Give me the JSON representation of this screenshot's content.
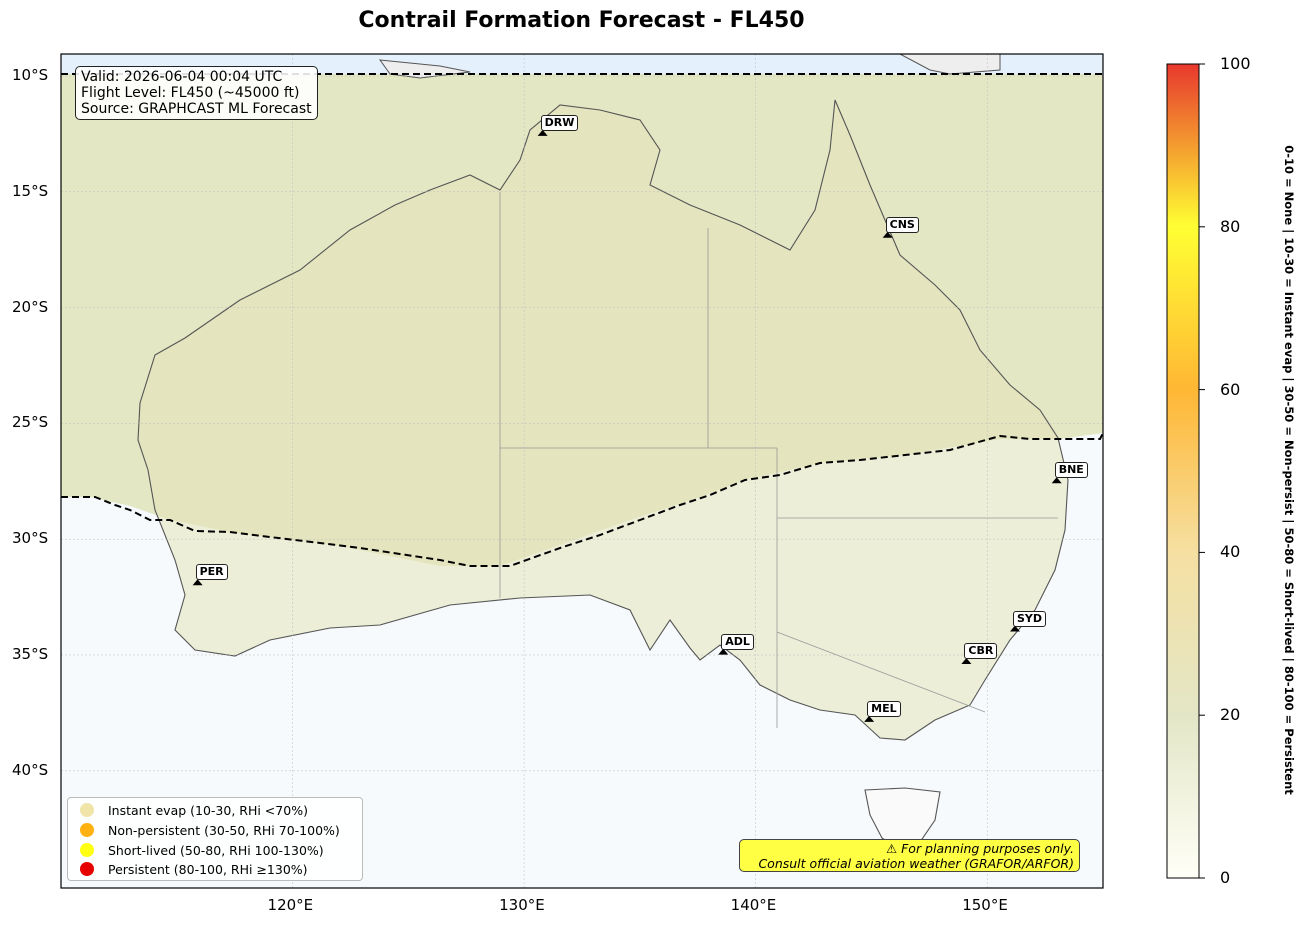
{
  "title": "Contrail Formation Forecast - FL450",
  "info": {
    "valid": "Valid: 2026-06-04 00:04 UTC",
    "flight_level": "Flight Level: FL450 (~45000 ft)",
    "source": "Source: GRAPHCAST ML Forecast"
  },
  "lat_ticks": [
    "10°S",
    "15°S",
    "20°S",
    "25°S",
    "30°S",
    "35°S",
    "40°S"
  ],
  "lon_ticks": [
    "120°E",
    "130°E",
    "140°E",
    "150°E"
  ],
  "cities": [
    {
      "code": "DRW",
      "lon": 130.8,
      "lat": -12.5
    },
    {
      "code": "CNS",
      "lon": 145.7,
      "lat": -16.9
    },
    {
      "code": "BNE",
      "lon": 153.0,
      "lat": -27.5
    },
    {
      "code": "PER",
      "lon": 115.9,
      "lat": -31.9
    },
    {
      "code": "ADL",
      "lon": 138.6,
      "lat": -34.9
    },
    {
      "code": "SYD",
      "lon": 151.2,
      "lat": -33.9
    },
    {
      "code": "CBR",
      "lon": 149.1,
      "lat": -35.3
    },
    {
      "code": "MEL",
      "lon": 144.9,
      "lat": -37.8
    }
  ],
  "legend": [
    {
      "label": "Instant evap (10-30, RHi <70%)",
      "color": "#f0e4a8"
    },
    {
      "label": "Non-persistent (30-50, RHi 70-100%)",
      "color": "#ffb20f"
    },
    {
      "label": "Short-lived (50-80, RHi 100-130%)",
      "color": "#ffff11"
    },
    {
      "label": "Persistent (80-100, RHi ≥130%)",
      "color": "#e60000"
    }
  ],
  "disclaimer": {
    "line1": "⚠ For planning purposes only.",
    "line2": "Consult official aviation weather (GRAFOR/ARFOR)"
  },
  "colorbar": {
    "ticks": [
      "0",
      "20",
      "40",
      "60",
      "80",
      "100"
    ],
    "label": "0-10 = None  |  10-30 = Instant evap  |  30-50 = Non-persist  |  50-80 = Short-lived  |  80-100 = Persistent",
    "colors": [
      "#fffff7",
      "#e3e6c6",
      "#f5e0a2",
      "#ffb734",
      "#ffff33",
      "#e8382d"
    ]
  }
}
